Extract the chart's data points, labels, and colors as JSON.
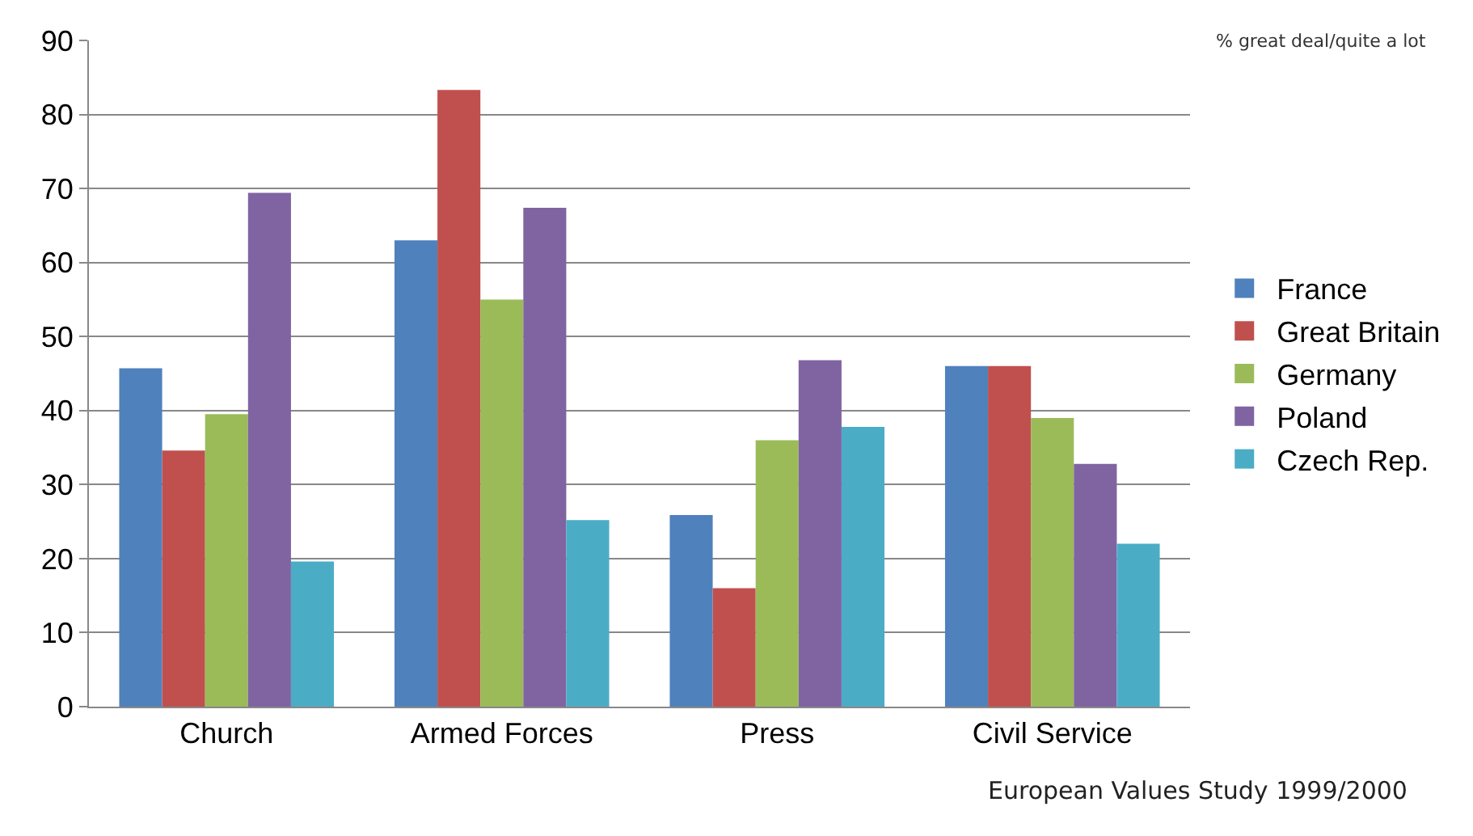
{
  "chart_data": {
    "type": "bar",
    "categories": [
      "Church",
      "Armed Forces",
      "Press",
      "Civil Service"
    ],
    "series": [
      {
        "name": "France",
        "color": "#4f81bd",
        "values": [
          45.7,
          63,
          25.9,
          46
        ]
      },
      {
        "name": "Great Britain",
        "color": "#c0504d",
        "values": [
          34.6,
          83.3,
          16,
          46
        ]
      },
      {
        "name": "Germany",
        "color": "#9bbb59",
        "values": [
          39.5,
          55,
          36,
          39
        ]
      },
      {
        "name": "Poland",
        "color": "#8064a2",
        "values": [
          69.4,
          67.4,
          46.8,
          32.8
        ]
      },
      {
        "name": "Czech Rep.",
        "color": "#4bacc6",
        "values": [
          19.6,
          25.2,
          37.8,
          22
        ]
      }
    ],
    "ylim": [
      0,
      90
    ],
    "yticks": [
      0,
      10,
      20,
      30,
      40,
      50,
      60,
      70,
      80,
      90
    ],
    "grid": "y",
    "legend": "right",
    "annotations": [
      "% great deal/quite a lot",
      "European Values Study 1999/2000"
    ]
  }
}
